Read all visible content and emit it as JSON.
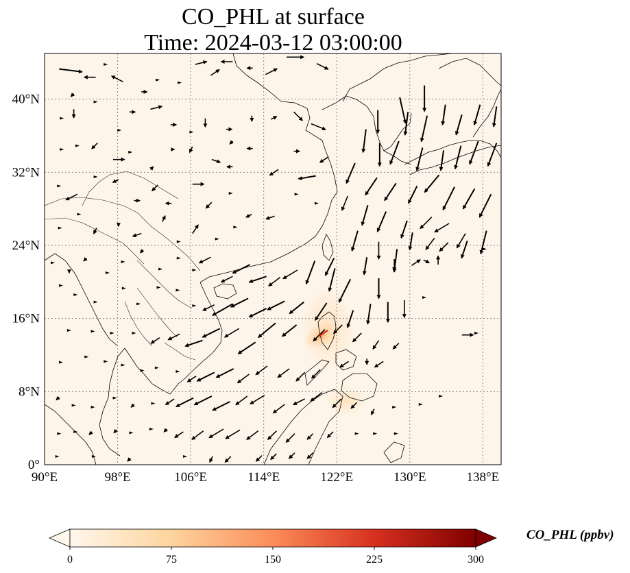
{
  "title": {
    "line1": "CO_PHL at surface",
    "line2": "Time: 2024-03-12 03:00:00"
  },
  "axes": {
    "lon_ticks": [
      "90°E",
      "98°E",
      "106°E",
      "114°E",
      "122°E",
      "130°E",
      "138°E"
    ],
    "lat_ticks": [
      "0°",
      "8°N",
      "16°N",
      "24°N",
      "32°N",
      "40°N"
    ],
    "lon_range": [
      90,
      140
    ],
    "lat_range": [
      0,
      45
    ],
    "grid": "dotted"
  },
  "colorbar": {
    "label": "CO_PHL (ppbv)",
    "ticks": [
      "0",
      "75",
      "150",
      "225",
      "300"
    ],
    "range": [
      0,
      300
    ],
    "extend": "both",
    "colormap": "OrRd",
    "colors": [
      "#fff7ec",
      "#fdd49e",
      "#fc8d59",
      "#d7301f",
      "#7f0000"
    ]
  },
  "field": {
    "background_level_ppbv": 5,
    "plume_center": {
      "lon": 120.8,
      "lat": 14.6
    },
    "plume_peak_ppbv": 180
  },
  "wind_vectors": [
    [
      91.6,
      43.3,
      8,
      -1
    ],
    [
      93.2,
      40.6,
      -1,
      -1
    ],
    [
      95.6,
      42.4,
      -4,
      0
    ],
    [
      96.7,
      43.8,
      0,
      0
    ],
    [
      98.6,
      41.9,
      -4,
      2
    ],
    [
      100.6,
      40.8,
      2,
      0
    ],
    [
      102.4,
      42.1,
      0,
      0
    ],
    [
      104.8,
      41.8,
      0,
      0
    ],
    [
      106.5,
      43.8,
      4,
      1
    ],
    [
      108.2,
      42.6,
      3,
      2
    ],
    [
      110.6,
      44.1,
      -4,
      0
    ],
    [
      112.8,
      43.4,
      -2,
      0
    ],
    [
      114.2,
      42.7,
      4,
      2
    ],
    [
      116.5,
      44.6,
      6,
      0
    ],
    [
      119.8,
      43.9,
      4,
      -2
    ],
    [
      91.9,
      37.9,
      0,
      0
    ],
    [
      93.2,
      38.9,
      0,
      -3
    ],
    [
      95.6,
      39.7,
      0,
      0
    ],
    [
      98.2,
      36.6,
      0,
      0
    ],
    [
      99.3,
      38.6,
      2,
      0
    ],
    [
      101.6,
      38.9,
      4,
      1
    ],
    [
      103.8,
      37.2,
      2,
      0
    ],
    [
      106.1,
      36.4,
      0,
      0
    ],
    [
      107.6,
      37.9,
      0,
      -3
    ],
    [
      109.9,
      36.7,
      2,
      0
    ],
    [
      110.6,
      35.4,
      -1,
      -1
    ],
    [
      112.7,
      38.2,
      0,
      -2
    ],
    [
      114.8,
      37.8,
      2,
      1
    ],
    [
      117.3,
      38.6,
      3,
      -3
    ],
    [
      119.2,
      37.3,
      5,
      -2
    ],
    [
      91.9,
      34.5,
      0,
      0
    ],
    [
      93.6,
      34.9,
      0,
      0
    ],
    [
      95.8,
      35.2,
      -2,
      -2
    ],
    [
      97.5,
      33.4,
      4,
      0
    ],
    [
      99.4,
      34.2,
      0,
      0
    ],
    [
      101.6,
      32.3,
      1,
      1
    ],
    [
      103.9,
      34.5,
      1,
      0
    ],
    [
      106.2,
      34.8,
      -1,
      -2
    ],
    [
      108.3,
      33.4,
      3,
      -1
    ],
    [
      110.6,
      32.6,
      -2,
      0
    ],
    [
      112.8,
      34.6,
      -2,
      0
    ],
    [
      115.6,
      32.3,
      -3,
      -2
    ],
    [
      117.3,
      34.3,
      2,
      0
    ],
    [
      119.7,
      31.6,
      -6,
      -1
    ],
    [
      121.1,
      33.7,
      -3,
      -2
    ],
    [
      91.6,
      30.5,
      0,
      0
    ],
    [
      93.6,
      29.6,
      -4,
      -2
    ],
    [
      95.6,
      31.5,
      0,
      0
    ],
    [
      98.1,
      31.2,
      -2,
      -1
    ],
    [
      99.8,
      28.9,
      2,
      0
    ],
    [
      102.4,
      30.6,
      -2,
      -2
    ],
    [
      103.9,
      28.6,
      -2,
      0
    ],
    [
      106.2,
      30.7,
      4,
      0
    ],
    [
      108.3,
      28.7,
      -2,
      -2
    ],
    [
      110.4,
      29.7,
      0,
      0
    ],
    [
      112.7,
      27.4,
      -2,
      -1
    ],
    [
      115.2,
      27.2,
      -3,
      -1
    ],
    [
      117.6,
      29.6,
      0,
      0
    ],
    [
      119.8,
      28.6,
      0,
      0
    ],
    [
      91.7,
      25.9,
      0,
      0
    ],
    [
      93.8,
      27.4,
      0,
      0
    ],
    [
      95.7,
      25.9,
      -1,
      -2
    ],
    [
      98.1,
      26.4,
      0,
      -1
    ],
    [
      100.6,
      25.3,
      -3,
      -1
    ],
    [
      102.9,
      26.6,
      1,
      2
    ],
    [
      104.7,
      24.4,
      0,
      0
    ],
    [
      106.2,
      25.3,
      2,
      3
    ],
    [
      108.9,
      24.7,
      0,
      0
    ],
    [
      110.9,
      26.0,
      0,
      0
    ],
    [
      90.9,
      22.1,
      0,
      0
    ],
    [
      92.7,
      21.3,
      0,
      -1
    ],
    [
      94.6,
      22.6,
      -1,
      -1
    ],
    [
      96.9,
      21.0,
      0,
      0
    ],
    [
      98.6,
      22.2,
      0,
      0
    ],
    [
      100.8,
      23.5,
      -1,
      -1
    ],
    [
      102.7,
      21.4,
      0,
      0
    ],
    [
      104.7,
      22.6,
      0,
      0
    ],
    [
      106.4,
      21.3,
      0,
      0
    ],
    [
      108.2,
      22.7,
      -4,
      -2
    ],
    [
      110.6,
      20.6,
      -4,
      -2
    ],
    [
      112.5,
      21.9,
      -6,
      -3
    ],
    [
      114.3,
      20.6,
      -6,
      -2
    ],
    [
      115.8,
      20.5,
      -4,
      -3
    ],
    [
      117.7,
      21.3,
      -5,
      -3
    ],
    [
      119.6,
      22.3,
      -3,
      -8
    ],
    [
      121.7,
      22.6,
      -3,
      -6
    ],
    [
      121.8,
      21.5,
      -2,
      -8
    ],
    [
      123.5,
      20.3,
      -4,
      -8
    ],
    [
      125.3,
      22.7,
      -1,
      -6
    ],
    [
      126.6,
      20.4,
      0,
      -7
    ],
    [
      128.3,
      22.5,
      0,
      -4
    ],
    [
      130.2,
      21.8,
      3,
      2
    ],
    [
      131.5,
      22.4,
      2,
      -1
    ],
    [
      133.1,
      21.9,
      0,
      3
    ],
    [
      91.8,
      19.6,
      0,
      0
    ],
    [
      93.4,
      18.6,
      0,
      0
    ],
    [
      95.6,
      17.8,
      0,
      0
    ],
    [
      98.7,
      19.3,
      0,
      0
    ],
    [
      100.3,
      17.6,
      0,
      0
    ],
    [
      102.5,
      19.4,
      0,
      0
    ],
    [
      104.6,
      19.1,
      0,
      0
    ],
    [
      106.4,
      17.4,
      0,
      0
    ],
    [
      108.6,
      17.5,
      -4,
      -2
    ],
    [
      110.6,
      17.6,
      -7,
      -4
    ],
    [
      112.3,
      18.2,
      -6,
      -3
    ],
    [
      114.3,
      17.1,
      -6,
      -3
    ],
    [
      116.3,
      17.9,
      -6,
      -3
    ],
    [
      118.4,
      17.8,
      -5,
      -4
    ],
    [
      120.9,
      17.7,
      -4,
      -6
    ],
    [
      123.8,
      16.9,
      -2,
      -6
    ],
    [
      125.7,
      17.6,
      -1,
      -7
    ],
    [
      127.6,
      17.8,
      0,
      -7
    ],
    [
      129.4,
      18.0,
      0,
      -6
    ],
    [
      131.6,
      18.3,
      0,
      0
    ],
    [
      92.7,
      14.7,
      0,
      0
    ],
    [
      95.3,
      14.6,
      0,
      0
    ],
    [
      97.4,
      14.4,
      0,
      0
    ],
    [
      99.8,
      14.4,
      0,
      0
    ],
    [
      102.6,
      13.9,
      -3,
      -2
    ],
    [
      104.8,
      14.3,
      -4,
      -2
    ],
    [
      107.3,
      13.6,
      -6,
      -2
    ],
    [
      109.2,
      14.9,
      -6,
      -3
    ],
    [
      111.3,
      14.9,
      -5,
      -3
    ],
    [
      113.1,
      13.4,
      -6,
      -4
    ],
    [
      115.3,
      15.5,
      -6,
      -5
    ],
    [
      117.6,
      15.3,
      -5,
      -4
    ],
    [
      120.7,
      14.8,
      -4,
      -4
    ],
    [
      122.6,
      15.3,
      -3,
      -3
    ],
    [
      124.7,
      14.4,
      -3,
      -3
    ],
    [
      126.6,
      13.6,
      -2,
      -3
    ],
    [
      128.8,
      13.3,
      -2,
      -2
    ],
    [
      135.7,
      14.2,
      4,
      0
    ],
    [
      137.3,
      14.4,
      0,
      0
    ],
    [
      91.8,
      11.2,
      0,
      0
    ],
    [
      94.6,
      11.8,
      0,
      0
    ],
    [
      96.7,
      11.3,
      0,
      0
    ],
    [
      98.6,
      10.9,
      0,
      0
    ],
    [
      100.7,
      10.3,
      0,
      0
    ],
    [
      102.3,
      10.6,
      0,
      0
    ],
    [
      104.6,
      10.2,
      0,
      0
    ],
    [
      106.6,
      9.7,
      -3,
      -2
    ],
    [
      108.6,
      10.1,
      -6,
      -3
    ],
    [
      110.7,
      10.5,
      -6,
      -3
    ],
    [
      112.4,
      9.9,
      -4,
      -3
    ],
    [
      114.4,
      10.8,
      -4,
      -3
    ],
    [
      116.8,
      10.5,
      -4,
      -3
    ],
    [
      118.5,
      10.1,
      -3,
      -3
    ],
    [
      120.2,
      10.4,
      -3,
      -3
    ],
    [
      123.3,
      11.3,
      -3,
      -2
    ],
    [
      125.3,
      11.6,
      0,
      -2
    ],
    [
      127.1,
      11.3,
      -3,
      -2
    ],
    [
      91.6,
      7.4,
      -1,
      -1
    ],
    [
      93.2,
      6.5,
      0,
      0
    ],
    [
      95.3,
      6.3,
      0,
      0
    ],
    [
      97.7,
      7.3,
      0,
      0
    ],
    [
      99.8,
      6.6,
      -1,
      -1
    ],
    [
      101.9,
      6.7,
      0,
      0
    ],
    [
      104.2,
      7.2,
      -3,
      -2
    ],
    [
      106.3,
      7.3,
      -6,
      -3
    ],
    [
      108.3,
      7.5,
      -6,
      -3
    ],
    [
      110.3,
      6.9,
      -6,
      -3
    ],
    [
      112.2,
      7.5,
      -4,
      -3
    ],
    [
      114.1,
      7.6,
      -5,
      -3
    ],
    [
      116.3,
      6.6,
      -4,
      -3
    ],
    [
      118.5,
      7.2,
      -4,
      -2
    ],
    [
      120.4,
      7.9,
      -4,
      -3
    ],
    [
      122.5,
      7.2,
      -3,
      -3
    ],
    [
      124.2,
      6.8,
      -2,
      -2
    ],
    [
      126.1,
      6.1,
      -1,
      -2
    ],
    [
      128.3,
      6.3,
      0,
      0
    ],
    [
      131.2,
      6.6,
      0,
      0
    ],
    [
      133.4,
      7.5,
      0,
      0
    ],
    [
      91.6,
      3.4,
      0,
      0
    ],
    [
      93.4,
      3.6,
      0,
      0
    ],
    [
      95.2,
      3.6,
      -1,
      -1
    ],
    [
      97.9,
      3.8,
      -1,
      -1
    ],
    [
      99.5,
      3.5,
      0,
      0
    ],
    [
      101.7,
      3.9,
      0,
      0
    ],
    [
      103.4,
      3.9,
      -1,
      -1
    ],
    [
      105.2,
      3.6,
      -3,
      -2
    ],
    [
      107.4,
      3.7,
      -4,
      -3
    ],
    [
      109.6,
      3.9,
      -5,
      -3
    ],
    [
      111.4,
      3.8,
      -5,
      -3
    ],
    [
      113.4,
      3.7,
      -4,
      -3
    ],
    [
      115.4,
      3.7,
      -3,
      -3
    ],
    [
      117.4,
      3.4,
      -3,
      -3
    ],
    [
      119.4,
      3.4,
      -2,
      -2
    ],
    [
      121.6,
      3.6,
      -2,
      -2
    ],
    [
      124.2,
      3.4,
      0,
      0
    ],
    [
      126.2,
      3.4,
      0,
      0
    ],
    [
      128.5,
      3.4,
      0,
      0
    ],
    [
      91.4,
      0.9,
      0,
      0
    ],
    [
      95.4,
      0.9,
      0,
      0
    ],
    [
      99.4,
      0.7,
      -1,
      -1
    ],
    [
      105.4,
      0.9,
      0,
      0
    ],
    [
      108.4,
      0.9,
      -1,
      -2
    ],
    [
      110.4,
      0.9,
      -2,
      -2
    ],
    [
      113.8,
      1.0,
      -2,
      -2
    ],
    [
      115.4,
      1.2,
      -2,
      -2
    ],
    [
      117.4,
      1.3,
      -2,
      -2
    ],
    [
      119.4,
      1.3,
      -2,
      -2
    ],
    [
      126.5,
      38.8,
      0,
      -8
    ],
    [
      128.9,
      40.2,
      2,
      -9
    ],
    [
      129.8,
      38.6,
      -1,
      -8
    ],
    [
      131.6,
      41.5,
      0,
      -9
    ],
    [
      131.9,
      38.2,
      -2,
      -9
    ],
    [
      133.9,
      39.4,
      -1,
      -7
    ],
    [
      135.7,
      38.3,
      -2,
      -7
    ],
    [
      137.7,
      39.4,
      -2,
      -7
    ],
    [
      139.5,
      39.2,
      -1,
      -7
    ],
    [
      125.2,
      36.7,
      -1,
      -8
    ],
    [
      126.7,
      35.2,
      0,
      -8
    ],
    [
      128.8,
      35.4,
      -3,
      -8
    ],
    [
      131.4,
      34.7,
      -2,
      -8
    ],
    [
      133.7,
      34.4,
      -1,
      -7
    ],
    [
      135.6,
      34.9,
      -2,
      -8
    ],
    [
      137.5,
      35.4,
      -3,
      -8
    ],
    [
      139.5,
      35.2,
      -3,
      -8
    ],
    [
      124.0,
      33.0,
      -3,
      -7
    ],
    [
      126.4,
      31.4,
      -4,
      -6
    ],
    [
      128.5,
      30.8,
      -4,
      -6
    ],
    [
      130.8,
      30.5,
      -3,
      -6
    ],
    [
      133.2,
      31.7,
      -5,
      -6
    ],
    [
      134.9,
      30.4,
      -4,
      -8
    ],
    [
      137.1,
      30.2,
      -4,
      -7
    ],
    [
      138.9,
      29.6,
      -4,
      -8
    ],
    [
      123.2,
      29.4,
      -2,
      -5
    ],
    [
      125.4,
      28.4,
      -2,
      -7
    ],
    [
      127.4,
      27.7,
      -3,
      -7
    ],
    [
      129.7,
      26.7,
      -2,
      -6
    ],
    [
      132.4,
      27.1,
      -4,
      -4
    ],
    [
      134.3,
      26.4,
      -5,
      -3
    ],
    [
      136.1,
      25.3,
      -3,
      -5
    ],
    [
      138.4,
      25.6,
      -2,
      -8
    ],
    [
      124.3,
      25.6,
      -2,
      -7
    ],
    [
      126.6,
      24.4,
      0,
      -6
    ],
    [
      128.6,
      23.6,
      -1,
      -8
    ],
    [
      130.3,
      25.4,
      -1,
      -6
    ],
    [
      132.7,
      24.8,
      -3,
      -4
    ],
    [
      134.2,
      24.3,
      -3,
      -3
    ],
    [
      136.3,
      24.5,
      -2,
      -6
    ],
    [
      138.2,
      23.6,
      0,
      0
    ]
  ]
}
